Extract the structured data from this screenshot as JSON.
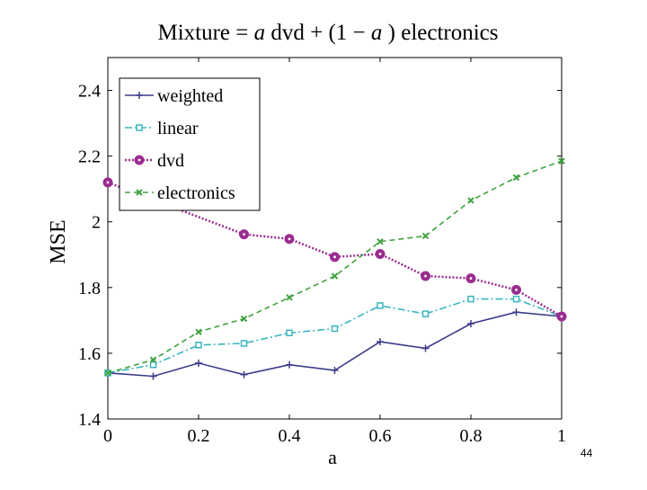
{
  "page_number": "44",
  "chart_data": {
    "type": "line",
    "title_parts": [
      "Mixture = ",
      "a",
      " dvd + (1 − ",
      "a",
      " ) electronics"
    ],
    "xlabel": "a",
    "ylabel": "MSE",
    "xlim": [
      0,
      1
    ],
    "ylim": [
      1.4,
      2.5
    ],
    "x_ticks": [
      0,
      0.2,
      0.4,
      0.6,
      0.8,
      1
    ],
    "x_tick_labels": [
      "0",
      "0.2",
      "0.4",
      "0.6",
      "0.8",
      "1"
    ],
    "y_ticks": [
      1.4,
      1.6,
      1.8,
      2.0,
      2.2,
      2.4
    ],
    "y_tick_labels": [
      "1.4",
      "1.6",
      "1.8",
      "2",
      "2.2",
      "2.4"
    ],
    "grid": false,
    "legend_position": "top-left",
    "x": [
      0,
      0.1,
      0.2,
      0.3,
      0.4,
      0.5,
      0.6,
      0.7,
      0.8,
      0.9,
      1.0
    ],
    "series": [
      {
        "name": "weighted",
        "color": "#3b3b8a",
        "dash": "",
        "marker": "plus",
        "values": [
          1.54,
          1.53,
          1.57,
          1.535,
          1.565,
          1.548,
          1.635,
          1.615,
          1.69,
          1.725,
          1.712
        ]
      },
      {
        "name": "linear",
        "color": "#3ab5c0",
        "dash": "8 3 2 3",
        "marker": "square",
        "values": [
          1.54,
          1.565,
          1.625,
          1.63,
          1.662,
          1.675,
          1.745,
          1.72,
          1.765,
          1.765,
          1.712
        ]
      },
      {
        "name": "dvd",
        "color": "#9b2d8f",
        "dash": "2 2",
        "marker": "circle",
        "values": [
          2.12,
          null,
          null,
          1.962,
          1.948,
          1.893,
          1.902,
          1.835,
          1.828,
          1.793,
          1.712
        ]
      },
      {
        "name": "electronics",
        "color": "#3fa33f",
        "dash": "6 4",
        "marker": "x",
        "values": [
          1.54,
          1.58,
          1.665,
          1.705,
          1.77,
          1.835,
          1.94,
          1.957,
          2.065,
          2.135,
          2.185
        ]
      }
    ]
  }
}
